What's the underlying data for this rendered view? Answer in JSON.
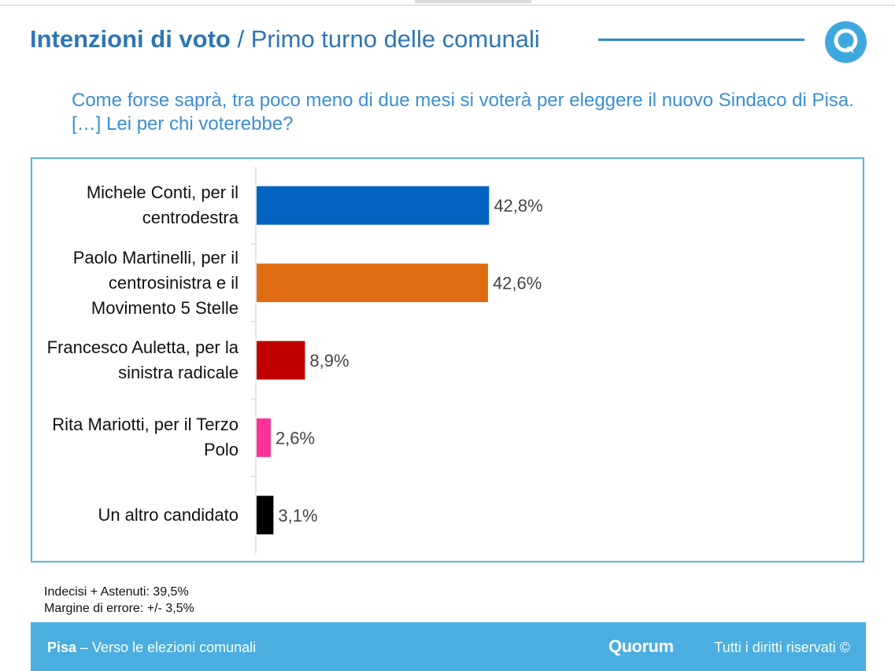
{
  "header": {
    "title_strong": "Intenzioni di voto",
    "title_sep": "/",
    "title_rest": "Primo turno delle comunali"
  },
  "question": "Come forse saprà, tra poco meno di due mesi si voterà per eleggere il nuovo Sindaco di Pisa. […] Lei per chi voterebbe?",
  "notes": {
    "line1": "Indecisi + Astenuti: 39,5%",
    "line2": "Margine di errore: +/- 3,5%"
  },
  "footer": {
    "place": "Pisa",
    "subtitle": " – Verso le elezioni comunali",
    "brand": "Quorum",
    "rights": "Tutti i diritti riservati ©"
  },
  "colors": {
    "accent": "#2e75b6",
    "frame": "#5bb3de",
    "footer_bg": "#4aaee0",
    "logo": "#3ea8de"
  },
  "icons": {
    "logo": "quorum-q-logo-icon"
  },
  "chart_data": {
    "type": "bar",
    "orientation": "horizontal",
    "categories": [
      "Michele Conti, per il centrodestra",
      "Paolo Martinelli, per il centrosinistra e il Movimento 5 Stelle",
      "Francesco Auletta, per la sinistra radicale",
      "Rita Mariotti, per il Terzo Polo",
      "Un altro candidato"
    ],
    "values": [
      42.8,
      42.6,
      8.9,
      2.6,
      3.1
    ],
    "value_labels": [
      "42,8%",
      "42,6%",
      "8,9%",
      "2,6%",
      "3,1%"
    ],
    "bar_colors": [
      "#0563c1",
      "#e06c11",
      "#c00000",
      "#ff3399",
      "#000000"
    ],
    "title": "",
    "xlabel": "",
    "ylabel": "",
    "xlim": [
      0,
      100
    ],
    "grid": false,
    "legend": "none"
  }
}
